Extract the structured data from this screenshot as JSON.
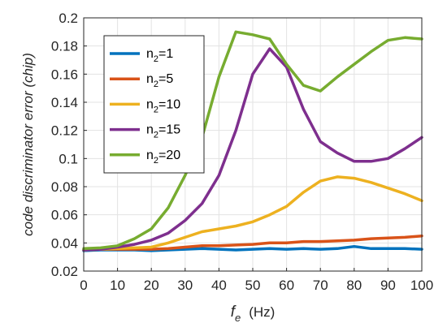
{
  "chart_data": {
    "type": "line",
    "title": "",
    "xlabel": {
      "main": "f",
      "sub": "e",
      "unit": "(Hz)"
    },
    "ylabel": "code discriminator error (chip)",
    "xlim": [
      0,
      100
    ],
    "ylim": [
      0.02,
      0.2
    ],
    "xticks": [
      "0",
      "10",
      "20",
      "30",
      "40",
      "50",
      "60",
      "70",
      "80",
      "90",
      "100"
    ],
    "yticks": [
      "0.02",
      "0.04",
      "0.06",
      "0.08",
      "0.1",
      "0.12",
      "0.14",
      "0.16",
      "0.18",
      "0.2"
    ],
    "grid": true,
    "legend_position": "top-left",
    "x": [
      0,
      5,
      10,
      15,
      20,
      25,
      30,
      35,
      40,
      45,
      50,
      55,
      60,
      65,
      70,
      75,
      80,
      85,
      90,
      95,
      100
    ],
    "series": [
      {
        "name_main": "n",
        "name_sub": "2",
        "name_rest": "=1",
        "color": "#0072BD",
        "values": [
          0.0345,
          0.035,
          0.035,
          0.035,
          0.0345,
          0.035,
          0.0355,
          0.036,
          0.0355,
          0.035,
          0.0355,
          0.036,
          0.0355,
          0.036,
          0.0355,
          0.036,
          0.0375,
          0.036,
          0.036,
          0.036,
          0.0355
        ]
      },
      {
        "name_main": "n",
        "name_sub": "2",
        "name_rest": "=5",
        "color": "#D95319",
        "values": [
          0.035,
          0.0355,
          0.0355,
          0.0355,
          0.0355,
          0.036,
          0.037,
          0.038,
          0.038,
          0.0385,
          0.039,
          0.04,
          0.04,
          0.041,
          0.041,
          0.0415,
          0.042,
          0.043,
          0.0435,
          0.044,
          0.045
        ]
      },
      {
        "name_main": "n",
        "name_sub": "2",
        "name_rest": "=10",
        "color": "#EDB120",
        "values": [
          0.035,
          0.0355,
          0.036,
          0.0365,
          0.037,
          0.04,
          0.044,
          0.048,
          0.05,
          0.052,
          0.055,
          0.06,
          0.066,
          0.076,
          0.084,
          0.087,
          0.086,
          0.083,
          0.079,
          0.075,
          0.07
        ]
      },
      {
        "name_main": "n",
        "name_sub": "2",
        "name_rest": "=15",
        "color": "#7E2F8E",
        "values": [
          0.035,
          0.0355,
          0.037,
          0.039,
          0.042,
          0.047,
          0.056,
          0.068,
          0.088,
          0.12,
          0.16,
          0.178,
          0.165,
          0.135,
          0.112,
          0.104,
          0.098,
          0.098,
          0.1,
          0.107,
          0.115
        ]
      },
      {
        "name_main": "n",
        "name_sub": "2",
        "name_rest": "=20",
        "color": "#77AC30",
        "values": [
          0.036,
          0.0365,
          0.038,
          0.043,
          0.05,
          0.065,
          0.088,
          0.115,
          0.158,
          0.19,
          0.188,
          0.185,
          0.167,
          0.152,
          0.148,
          0.158,
          0.167,
          0.176,
          0.184,
          0.186,
          0.185
        ]
      }
    ]
  }
}
